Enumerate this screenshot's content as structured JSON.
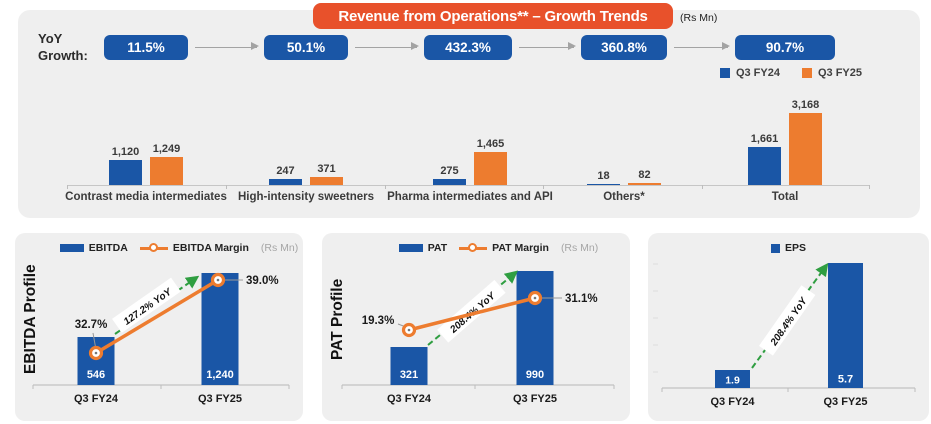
{
  "banner": {
    "title": "Revenue from Operations** – Growth Trends",
    "unit_note": "(Rs Mn)"
  },
  "yoy": {
    "label_line1": "YoY",
    "label_line2": "Growth:"
  },
  "colors": {
    "blue": "#1A56A6",
    "orange": "#ED7C2F",
    "banner_orange": "#E8512B",
    "green_arrow": "#2F9E41",
    "panel_bg": "#EFEFEF"
  },
  "chart_data": [
    {
      "name": "revenue_by_segment",
      "type": "bar",
      "title": "Revenue from Operations** – Growth Trends",
      "unit": "Rs Mn",
      "legend_position": "top-right",
      "grid": false,
      "ylim": [
        0,
        3300
      ],
      "categories": [
        "Contrast media intermediates",
        "High-intensity sweetners",
        "Pharma intermediates and API",
        "Others*",
        "Total"
      ],
      "yoy_growth": [
        "11.5%",
        "50.1%",
        "432.3%",
        "360.8%",
        "90.7%"
      ],
      "series": [
        {
          "name": "Q3 FY24",
          "color": "#1A56A6",
          "values": [
            1120,
            247,
            275,
            18,
            1661
          ],
          "labels": [
            "1,120",
            "247",
            "275",
            "18",
            "1,661"
          ]
        },
        {
          "name": "Q3 FY25",
          "color": "#ED7C2F",
          "values": [
            1249,
            371,
            1465,
            82,
            3168
          ],
          "labels": [
            "1,249",
            "371",
            "1,465",
            "82",
            "3,168"
          ]
        }
      ]
    },
    {
      "name": "ebitda_profile",
      "type": "bar+line",
      "title": "EBITDA Profile",
      "unit": "(Rs Mn)",
      "categories": [
        "Q3 FY24",
        "Q3 FY25"
      ],
      "series": [
        {
          "name": "EBITDA",
          "type": "bar",
          "color": "#1A56A6",
          "values": [
            546,
            1240
          ],
          "labels": [
            "546",
            "1,240"
          ]
        },
        {
          "name": "EBITDA Margin",
          "type": "line",
          "color": "#ED7C2F",
          "values_pct": [
            32.7,
            39.0
          ],
          "labels": [
            "32.7%",
            "39.0%"
          ]
        }
      ],
      "growth_annotation": "127.2% YoY"
    },
    {
      "name": "pat_profile",
      "type": "bar+line",
      "title": "PAT Profile",
      "unit": "(Rs Mn)",
      "categories": [
        "Q3 FY24",
        "Q3 FY25"
      ],
      "series": [
        {
          "name": "PAT",
          "type": "bar",
          "color": "#1A56A6",
          "values": [
            321,
            990
          ],
          "labels": [
            "321",
            "990"
          ]
        },
        {
          "name": "PAT Margin",
          "type": "line",
          "color": "#ED7C2F",
          "values_pct": [
            19.3,
            31.1
          ],
          "labels": [
            "19.3%",
            "31.1%"
          ]
        }
      ],
      "growth_annotation": "208.4% YoY"
    },
    {
      "name": "eps",
      "type": "bar",
      "title": "EPS",
      "categories": [
        "Q3 FY24",
        "Q3 FY25"
      ],
      "series": [
        {
          "name": "EPS",
          "type": "bar",
          "color": "#1A56A6",
          "values": [
            1.9,
            5.7
          ],
          "labels": [
            "1.9",
            "5.7"
          ]
        }
      ],
      "growth_annotation": "208.4% YoY"
    }
  ]
}
